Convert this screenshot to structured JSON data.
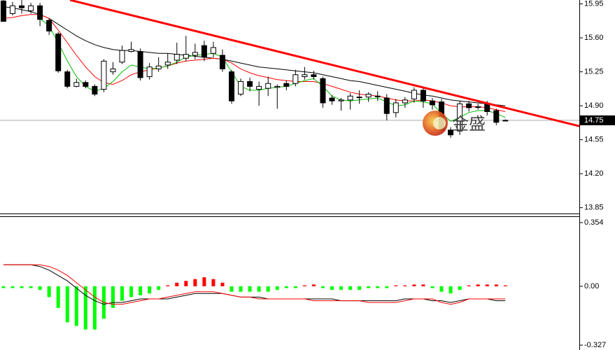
{
  "chart_data": [
    {
      "type": "candlestick",
      "xlim": [
        -0.38,
        63.1
      ],
      "ylim": [
        13.79,
        15.99
      ],
      "yticks": [
        15.95,
        {
          "value": 15.6,
          "label": "15.60"
        },
        15.25,
        {
          "value": 14.9,
          "label": "14.90"
        },
        14.55,
        {
          "value": 14.2,
          "label": "14.20"
        },
        13.85
      ],
      "up_color": "#ffffff",
      "down_color": "#000000",
      "open": [
        15.98,
        15.85,
        15.93,
        15.88,
        15.93,
        15.78,
        15.64,
        15.25,
        15.1,
        15.14,
        15.1,
        15.07,
        15.25,
        15.35,
        15.46,
        15.46,
        15.2,
        15.28,
        15.32,
        15.37,
        15.39,
        15.42,
        15.52,
        15.44,
        15.42,
        15.25,
        15.02,
        15.15,
        15.07,
        15.08,
        15.09,
        15.13,
        15.13,
        15.2,
        15.22,
        15.18,
        14.98,
        14.95,
        14.96,
        14.99,
        14.99,
        15.0,
        14.98,
        14.83,
        14.93,
        14.97,
        15.06,
        14.95,
        14.94,
        14.65,
        14.64,
        14.92,
        14.89,
        14.92,
        14.85,
        14.75
      ],
      "high": [
        15.99,
        15.97,
        15.99,
        15.96,
        15.96,
        15.8,
        15.66,
        15.27,
        15.18,
        15.16,
        15.12,
        15.38,
        15.35,
        15.52,
        15.56,
        15.49,
        15.34,
        15.4,
        15.44,
        15.55,
        15.62,
        15.54,
        15.57,
        15.56,
        15.48,
        15.27,
        15.18,
        15.19,
        15.15,
        15.2,
        15.12,
        15.16,
        15.27,
        15.3,
        15.26,
        15.2,
        15.01,
        14.98,
        15.03,
        15.06,
        15.04,
        15.05,
        15.02,
        14.97,
        14.99,
        15.09,
        15.08,
        14.98,
        14.97,
        14.68,
        14.95,
        14.95,
        14.92,
        14.95,
        14.87,
        14.76
      ],
      "low": [
        15.77,
        15.83,
        15.85,
        15.85,
        15.72,
        15.63,
        15.24,
        15.08,
        15.09,
        15.08,
        15.0,
        15.04,
        15.22,
        15.33,
        15.45,
        15.16,
        15.17,
        15.25,
        15.28,
        15.33,
        15.36,
        15.38,
        15.36,
        15.4,
        15.25,
        14.92,
        15.0,
        15.05,
        14.9,
        15.0,
        14.87,
        15.06,
        15.1,
        15.17,
        15.17,
        14.88,
        14.91,
        14.85,
        14.86,
        14.92,
        14.94,
        14.95,
        14.75,
        14.78,
        14.88,
        14.93,
        14.88,
        14.86,
        14.62,
        14.57,
        14.6,
        14.84,
        14.86,
        14.8,
        14.7,
        14.74
      ],
      "close": [
        15.77,
        15.93,
        15.91,
        15.93,
        15.79,
        15.67,
        15.26,
        15.1,
        15.14,
        15.1,
        15.02,
        15.36,
        15.28,
        15.47,
        15.48,
        15.19,
        15.3,
        15.31,
        15.35,
        15.43,
        15.43,
        15.45,
        15.4,
        15.5,
        15.28,
        14.95,
        15.15,
        15.1,
        15.1,
        15.13,
        15.1,
        15.1,
        15.22,
        15.22,
        15.2,
        14.93,
        14.95,
        14.96,
        15.0,
        14.99,
        15.02,
        15.0,
        14.82,
        14.93,
        14.96,
        15.06,
        14.95,
        14.91,
        14.65,
        14.6,
        14.92,
        14.88,
        14.89,
        14.84,
        14.73,
        14.75
      ],
      "lines": [
        {
          "color": "#000000",
          "values": [
            15.92,
            15.91,
            15.89,
            15.87,
            15.84,
            15.8,
            15.74,
            15.68,
            15.62,
            15.57,
            15.53,
            15.5,
            15.48,
            15.47,
            15.47,
            15.46,
            15.45,
            15.44,
            15.44,
            15.43,
            15.42,
            15.41,
            15.4,
            15.39,
            15.38,
            15.36,
            15.34,
            15.32,
            15.3,
            15.29,
            15.28,
            15.27,
            15.26,
            15.25,
            15.24,
            15.22,
            15.2,
            15.18,
            15.16,
            15.15,
            15.13,
            15.11,
            15.09,
            15.07,
            15.05,
            15.03,
            15.01,
            15.0,
            14.98,
            14.96,
            14.95,
            14.94,
            14.93,
            14.92,
            14.91,
            14.9
          ]
        },
        {
          "color": "#ff0000",
          "values": [
            15.8,
            15.81,
            15.83,
            15.84,
            15.84,
            15.8,
            15.68,
            15.55,
            15.42,
            15.3,
            15.2,
            15.14,
            15.12,
            15.16,
            15.22,
            15.25,
            15.27,
            15.29,
            15.31,
            15.34,
            15.36,
            15.37,
            15.38,
            15.39,
            15.38,
            15.34,
            15.28,
            15.24,
            15.21,
            15.19,
            15.17,
            15.16,
            15.15,
            15.15,
            15.15,
            15.13,
            15.1,
            15.07,
            15.04,
            15.02,
            15.01,
            15.0,
            14.98,
            14.96,
            14.95,
            14.95,
            14.96,
            14.95,
            14.93,
            14.9,
            14.89,
            14.89,
            14.89,
            14.88,
            14.86,
            14.84
          ]
        },
        {
          "color": "#00c000",
          "values": [
            null,
            null,
            null,
            null,
            15.8,
            15.72,
            15.55,
            15.36,
            15.2,
            15.1,
            15.05,
            15.08,
            15.15,
            15.25,
            15.32,
            15.3,
            15.28,
            15.29,
            15.31,
            15.35,
            15.4,
            15.42,
            15.43,
            15.44,
            15.4,
            15.25,
            15.1,
            15.06,
            15.06,
            15.08,
            15.09,
            15.1,
            15.13,
            15.16,
            15.18,
            15.1,
            15.0,
            14.96,
            14.95,
            14.96,
            14.97,
            14.98,
            14.94,
            14.9,
            14.91,
            14.95,
            14.94,
            14.92,
            14.82,
            14.74,
            14.78,
            14.83,
            14.85,
            14.85,
            14.82,
            14.78
          ]
        }
      ],
      "trendline": {
        "color": "#ff0000",
        "x": [
          7.3,
          63.1
        ],
        "values": [
          15.99,
          14.69
        ]
      },
      "last_price": 14.75,
      "watermark": "金盛"
    },
    {
      "type": "macd",
      "xlim": [
        -0.38,
        63.1
      ],
      "ylim": [
        -0.354,
        0.389
      ],
      "yticks": [
        0.354,
        {
          "value": 0,
          "label": "0.00"
        },
        -0.327
      ],
      "up_color": "#ff0000",
      "down_color": "#00ff00",
      "values": [
        -0.01,
        -0.01,
        -0.01,
        -0.01,
        -0.02,
        -0.06,
        -0.12,
        -0.2,
        -0.22,
        -0.24,
        -0.24,
        -0.18,
        -0.12,
        -0.08,
        -0.06,
        -0.05,
        -0.04,
        -0.02,
        0.005,
        0.02,
        0.03,
        0.04,
        0.05,
        0.04,
        0.02,
        -0.03,
        -0.03,
        -0.03,
        -0.03,
        -0.03,
        -0.02,
        -0.01,
        -0.01,
        0.005,
        0.01,
        -0.01,
        -0.02,
        -0.02,
        -0.02,
        -0.02,
        -0.01,
        -0.01,
        -0.01,
        0.005,
        0.005,
        0.01,
        0.01,
        -0.01,
        -0.03,
        -0.04,
        -0.02,
        0.005,
        0.01,
        0.01,
        0.01,
        0.005
      ],
      "lines": [
        {
          "color": "#000000",
          "values": [
            0.12,
            0.12,
            0.12,
            0.12,
            0.11,
            0.09,
            0.06,
            0.03,
            -0.01,
            -0.05,
            -0.08,
            -0.1,
            -0.09,
            -0.09,
            -0.08,
            -0.07,
            -0.07,
            -0.07,
            -0.07,
            -0.06,
            -0.05,
            -0.04,
            -0.04,
            -0.04,
            -0.04,
            -0.05,
            -0.06,
            -0.06,
            -0.06,
            -0.07,
            -0.07,
            -0.07,
            -0.07,
            -0.07,
            -0.07,
            -0.07,
            -0.07,
            -0.08,
            -0.08,
            -0.08,
            -0.08,
            -0.08,
            -0.08,
            -0.08,
            -0.07,
            -0.07,
            -0.07,
            -0.08,
            -0.08,
            -0.09,
            -0.08,
            -0.07,
            -0.07,
            -0.07,
            -0.08,
            -0.08
          ]
        },
        {
          "color": "#ff0000",
          "values": [
            0.12,
            0.12,
            0.12,
            0.12,
            0.12,
            0.11,
            0.09,
            0.06,
            0.02,
            -0.02,
            -0.06,
            -0.09,
            -0.1,
            -0.1,
            -0.09,
            -0.08,
            -0.07,
            -0.07,
            -0.06,
            -0.05,
            -0.04,
            -0.03,
            -0.03,
            -0.03,
            -0.04,
            -0.05,
            -0.06,
            -0.06,
            -0.07,
            -0.07,
            -0.07,
            -0.07,
            -0.07,
            -0.07,
            -0.08,
            -0.08,
            -0.08,
            -0.08,
            -0.08,
            -0.08,
            -0.09,
            -0.09,
            -0.09,
            -0.09,
            -0.08,
            -0.07,
            -0.07,
            -0.07,
            -0.09,
            -0.1,
            -0.09,
            -0.07,
            -0.07,
            -0.07,
            -0.07,
            -0.07
          ]
        }
      ]
    }
  ]
}
